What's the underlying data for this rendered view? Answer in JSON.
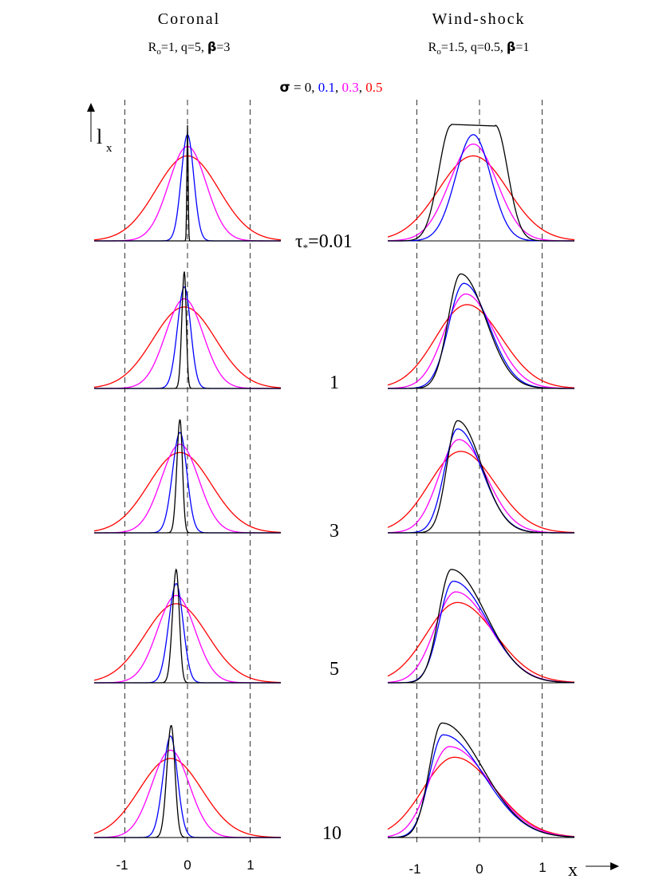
{
  "header": {
    "left_title": "Coronal",
    "left_params": {
      "r": "R",
      "sub": "o",
      "rest": "=1, q=5, ",
      "beta": "β",
      "beta_rest": "=3"
    },
    "right_title": "Wind-shock",
    "right_params": {
      "r": "R",
      "sub": "o",
      "rest": "=1.5, q=0.5, ",
      "beta": "β",
      "beta_rest": "=1"
    },
    "sigma_symbol": "σ",
    "sigma_eq": " = ",
    "sigma_values": [
      "0",
      "0.1",
      "0.3",
      "0.5"
    ],
    "sigma_sep": ", "
  },
  "axis_labels": {
    "y_main": "l",
    "y_sub": "x",
    "x_label": "x",
    "tau_symbol": "τ",
    "tau_sub": "*",
    "tau_eq": "="
  },
  "tau_labels": [
    "0.01",
    "1",
    "3",
    "5",
    "10"
  ],
  "x_ticks": [
    "-1",
    "0",
    "1"
  ],
  "colors": {
    "sigma_0": "#000000",
    "sigma_0.1": "#0000ff",
    "sigma_0.3": "#ff00ff",
    "sigma_0.5": "#ff0000",
    "dashed_lines": "#333333"
  },
  "chart_data": {
    "type": "line",
    "layout": "5 rows (tau_*) x 2 columns (models)",
    "x": {
      "label": "x",
      "range": [
        -1.5,
        1.5
      ],
      "ticks": [
        -1,
        0,
        1
      ],
      "dashed_reference_lines": [
        -1,
        0,
        1
      ]
    },
    "y": {
      "label": "l_x",
      "range": [
        0,
        1
      ],
      "ticks": "none"
    },
    "series_legend": [
      "σ = 0",
      "σ = 0.1",
      "σ = 0.3",
      "σ = 0.5"
    ],
    "panels": [
      {
        "model": "Coronal",
        "tau": 0.01,
        "series": [
          {
            "sigma": 0,
            "peak_x": 0.0,
            "peak_y": 0.98,
            "width_left": 0.01,
            "width_right": 0.01,
            "flat_halfwidth": 0,
            "shape": "gauss"
          },
          {
            "sigma": 0.1,
            "peak_x": 0.0,
            "peak_y": 0.9,
            "width_left": 0.1,
            "width_right": 0.1,
            "flat_halfwidth": 0,
            "shape": "gauss"
          },
          {
            "sigma": 0.3,
            "peak_x": 0.0,
            "peak_y": 0.8,
            "width_left": 0.3,
            "width_right": 0.3,
            "flat_halfwidth": 0,
            "shape": "gauss"
          },
          {
            "sigma": 0.5,
            "peak_x": 0.0,
            "peak_y": 0.72,
            "width_left": 0.5,
            "width_right": 0.5,
            "flat_halfwidth": 0,
            "shape": "gauss"
          }
        ]
      },
      {
        "model": "Coronal",
        "tau": 1,
        "series": [
          {
            "sigma": 0,
            "peak_x": -0.05,
            "peak_y": 0.99,
            "width_left": 0.04,
            "width_right": 0.03,
            "flat_halfwidth": 0,
            "shape": "gauss"
          },
          {
            "sigma": 0.1,
            "peak_x": -0.05,
            "peak_y": 0.86,
            "width_left": 0.11,
            "width_right": 0.1,
            "flat_halfwidth": 0,
            "shape": "gauss"
          },
          {
            "sigma": 0.3,
            "peak_x": -0.05,
            "peak_y": 0.76,
            "width_left": 0.3,
            "width_right": 0.3,
            "flat_halfwidth": 0,
            "shape": "gauss"
          },
          {
            "sigma": 0.5,
            "peak_x": -0.05,
            "peak_y": 0.69,
            "width_left": 0.5,
            "width_right": 0.5,
            "flat_halfwidth": 0,
            "shape": "gauss"
          }
        ]
      },
      {
        "model": "Coronal",
        "tau": 3,
        "series": [
          {
            "sigma": 0,
            "peak_x": -0.12,
            "peak_y": 0.96,
            "width_left": 0.05,
            "width_right": 0.04,
            "flat_halfwidth": 0,
            "shape": "gauss"
          },
          {
            "sigma": 0.1,
            "peak_x": -0.12,
            "peak_y": 0.85,
            "width_left": 0.12,
            "width_right": 0.11,
            "flat_halfwidth": 0,
            "shape": "gauss"
          },
          {
            "sigma": 0.3,
            "peak_x": -0.12,
            "peak_y": 0.75,
            "width_left": 0.3,
            "width_right": 0.3,
            "flat_halfwidth": 0,
            "shape": "gauss"
          },
          {
            "sigma": 0.5,
            "peak_x": -0.12,
            "peak_y": 0.68,
            "width_left": 0.5,
            "width_right": 0.5,
            "flat_halfwidth": 0,
            "shape": "gauss"
          }
        ]
      },
      {
        "model": "Coronal",
        "tau": 5,
        "series": [
          {
            "sigma": 0,
            "peak_x": -0.18,
            "peak_y": 0.96,
            "width_left": 0.06,
            "width_right": 0.05,
            "flat_halfwidth": 0,
            "shape": "gauss"
          },
          {
            "sigma": 0.1,
            "peak_x": -0.18,
            "peak_y": 0.84,
            "width_left": 0.12,
            "width_right": 0.11,
            "flat_halfwidth": 0,
            "shape": "gauss"
          },
          {
            "sigma": 0.3,
            "peak_x": -0.18,
            "peak_y": 0.74,
            "width_left": 0.3,
            "width_right": 0.3,
            "flat_halfwidth": 0,
            "shape": "gauss"
          },
          {
            "sigma": 0.5,
            "peak_x": -0.18,
            "peak_y": 0.67,
            "width_left": 0.5,
            "width_right": 0.5,
            "flat_halfwidth": 0,
            "shape": "gauss"
          }
        ]
      },
      {
        "model": "Coronal",
        "tau": 10,
        "series": [
          {
            "sigma": 0,
            "peak_x": -0.26,
            "peak_y": 0.95,
            "width_left": 0.07,
            "width_right": 0.06,
            "flat_halfwidth": 0,
            "shape": "gauss"
          },
          {
            "sigma": 0.1,
            "peak_x": -0.27,
            "peak_y": 0.86,
            "width_left": 0.12,
            "width_right": 0.11,
            "flat_halfwidth": 0,
            "shape": "gauss"
          },
          {
            "sigma": 0.3,
            "peak_x": -0.27,
            "peak_y": 0.74,
            "width_left": 0.3,
            "width_right": 0.3,
            "flat_halfwidth": 0,
            "shape": "gauss"
          },
          {
            "sigma": 0.5,
            "peak_x": -0.27,
            "peak_y": 0.67,
            "width_left": 0.5,
            "width_right": 0.5,
            "flat_halfwidth": 0,
            "shape": "gauss"
          }
        ]
      },
      {
        "model": "Wind-shock",
        "tau": 0.01,
        "series": [
          {
            "sigma": 0,
            "peak_x": -0.1,
            "peak_y": 0.98,
            "width_left": 0.2,
            "width_right": 0.2,
            "flat_halfwidth": 0.35,
            "shape": "flat"
          },
          {
            "sigma": 0.1,
            "peak_x": -0.1,
            "peak_y": 0.9,
            "width_left": 0.28,
            "width_right": 0.28,
            "flat_halfwidth": 0,
            "shape": "gauss"
          },
          {
            "sigma": 0.3,
            "peak_x": -0.1,
            "peak_y": 0.82,
            "width_left": 0.38,
            "width_right": 0.38,
            "flat_halfwidth": 0,
            "shape": "gauss"
          },
          {
            "sigma": 0.5,
            "peak_x": -0.1,
            "peak_y": 0.72,
            "width_left": 0.55,
            "width_right": 0.55,
            "flat_halfwidth": 0,
            "shape": "gauss"
          }
        ]
      },
      {
        "model": "Wind-shock",
        "tau": 1,
        "series": [
          {
            "sigma": 0,
            "peak_x": -0.3,
            "peak_y": 0.97,
            "width_left": 0.2,
            "width_right": 0.4,
            "flat_halfwidth": 0,
            "shape": "skew"
          },
          {
            "sigma": 0.1,
            "peak_x": -0.25,
            "peak_y": 0.89,
            "width_left": 0.24,
            "width_right": 0.4,
            "flat_halfwidth": 0,
            "shape": "skew"
          },
          {
            "sigma": 0.3,
            "peak_x": -0.22,
            "peak_y": 0.8,
            "width_left": 0.34,
            "width_right": 0.45,
            "flat_halfwidth": 0,
            "shape": "skew"
          },
          {
            "sigma": 0.5,
            "peak_x": -0.2,
            "peak_y": 0.71,
            "width_left": 0.5,
            "width_right": 0.55,
            "flat_halfwidth": 0,
            "shape": "skew"
          }
        ]
      },
      {
        "model": "Wind-shock",
        "tau": 3,
        "series": [
          {
            "sigma": 0,
            "peak_x": -0.35,
            "peak_y": 0.95,
            "width_left": 0.17,
            "width_right": 0.38,
            "flat_halfwidth": 0,
            "shape": "skew"
          },
          {
            "sigma": 0.1,
            "peak_x": -0.35,
            "peak_y": 0.88,
            "width_left": 0.21,
            "width_right": 0.39,
            "flat_halfwidth": 0,
            "shape": "skew"
          },
          {
            "sigma": 0.3,
            "peak_x": -0.33,
            "peak_y": 0.79,
            "width_left": 0.32,
            "width_right": 0.44,
            "flat_halfwidth": 0,
            "shape": "skew"
          },
          {
            "sigma": 0.5,
            "peak_x": -0.3,
            "peak_y": 0.69,
            "width_left": 0.5,
            "width_right": 0.55,
            "flat_halfwidth": 0,
            "shape": "skew"
          }
        ]
      },
      {
        "model": "Wind-shock",
        "tau": 5,
        "series": [
          {
            "sigma": 0,
            "peak_x": -0.45,
            "peak_y": 0.96,
            "width_left": 0.2,
            "width_right": 0.55,
            "flat_halfwidth": 0,
            "shape": "skew"
          },
          {
            "sigma": 0.1,
            "peak_x": -0.42,
            "peak_y": 0.86,
            "width_left": 0.22,
            "width_right": 0.55,
            "flat_halfwidth": 0,
            "shape": "skew"
          },
          {
            "sigma": 0.3,
            "peak_x": -0.38,
            "peak_y": 0.77,
            "width_left": 0.33,
            "width_right": 0.55,
            "flat_halfwidth": 0,
            "shape": "skew"
          },
          {
            "sigma": 0.5,
            "peak_x": -0.35,
            "peak_y": 0.68,
            "width_left": 0.5,
            "width_right": 0.6,
            "flat_halfwidth": 0,
            "shape": "skew"
          }
        ]
      },
      {
        "model": "Wind-shock",
        "tau": 10,
        "series": [
          {
            "sigma": 0,
            "peak_x": -0.6,
            "peak_y": 0.97,
            "width_left": 0.2,
            "width_right": 0.65,
            "flat_halfwidth": 0,
            "shape": "skew"
          },
          {
            "sigma": 0.1,
            "peak_x": -0.58,
            "peak_y": 0.87,
            "width_left": 0.22,
            "width_right": 0.65,
            "flat_halfwidth": 0,
            "shape": "skew"
          },
          {
            "sigma": 0.3,
            "peak_x": -0.48,
            "peak_y": 0.77,
            "width_left": 0.33,
            "width_right": 0.65,
            "flat_halfwidth": 0,
            "shape": "skew"
          },
          {
            "sigma": 0.5,
            "peak_x": -0.4,
            "peak_y": 0.68,
            "width_left": 0.5,
            "width_right": 0.65,
            "flat_halfwidth": 0,
            "shape": "skew"
          }
        ]
      }
    ]
  }
}
